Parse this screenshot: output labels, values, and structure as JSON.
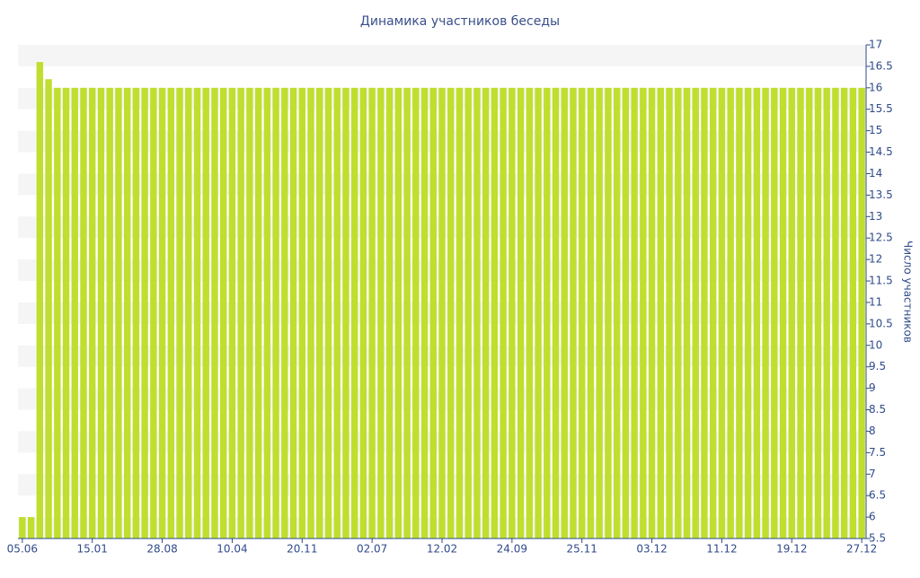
{
  "chart_data": {
    "type": "bar",
    "title": "Динамика участников беседы",
    "y_label": "Число участников",
    "color": "#bfde2e",
    "categories": [
      "05.06",
      null,
      null,
      null,
      null,
      null,
      null,
      null,
      "15.01",
      null,
      null,
      null,
      null,
      null,
      null,
      null,
      "28.08",
      null,
      null,
      null,
      null,
      null,
      null,
      null,
      "10.04",
      null,
      null,
      null,
      null,
      null,
      null,
      null,
      "20.11",
      null,
      null,
      null,
      null,
      null,
      null,
      null,
      "02.07",
      null,
      null,
      null,
      null,
      null,
      null,
      null,
      "12.02",
      null,
      null,
      null,
      null,
      null,
      null,
      null,
      "24.09",
      null,
      null,
      null,
      null,
      null,
      null,
      null,
      "25.11",
      null,
      null,
      null,
      null,
      null,
      null,
      null,
      "03.12",
      null,
      null,
      null,
      null,
      null,
      null,
      null,
      "11.12",
      null,
      null,
      null,
      null,
      null,
      null,
      null,
      "19.12",
      null,
      null,
      null,
      null,
      null,
      null,
      null,
      "27.12"
    ],
    "values": [
      6,
      6,
      16.6,
      16.2,
      16,
      16,
      16,
      16,
      16,
      16,
      16,
      16,
      16,
      16,
      16,
      16,
      16,
      16,
      16,
      16,
      16,
      16,
      16,
      16,
      16,
      16,
      16,
      16,
      16,
      16,
      16,
      16,
      16,
      16,
      16,
      16,
      16,
      16,
      16,
      16,
      16,
      16,
      16,
      16,
      16,
      16,
      16,
      16,
      16,
      16,
      16,
      16,
      16,
      16,
      16,
      16,
      16,
      16,
      16,
      16,
      16,
      16,
      16,
      16,
      16,
      16,
      16,
      16,
      16,
      16,
      16,
      16,
      16,
      16,
      16,
      16,
      16,
      16,
      16,
      16,
      16,
      16,
      16,
      16,
      16,
      16,
      16,
      16,
      16,
      16,
      16,
      16,
      16,
      16,
      16,
      16,
      16
    ],
    "ylim": [
      5.5,
      17
    ],
    "yticks": [
      5.5,
      6,
      6.5,
      7,
      7.5,
      8,
      8.5,
      9,
      9.5,
      10,
      10.5,
      11,
      11.5,
      12,
      12.5,
      13,
      13.5,
      14,
      14.5,
      15,
      15.5,
      16,
      16.5,
      17
    ],
    "grid": true
  }
}
